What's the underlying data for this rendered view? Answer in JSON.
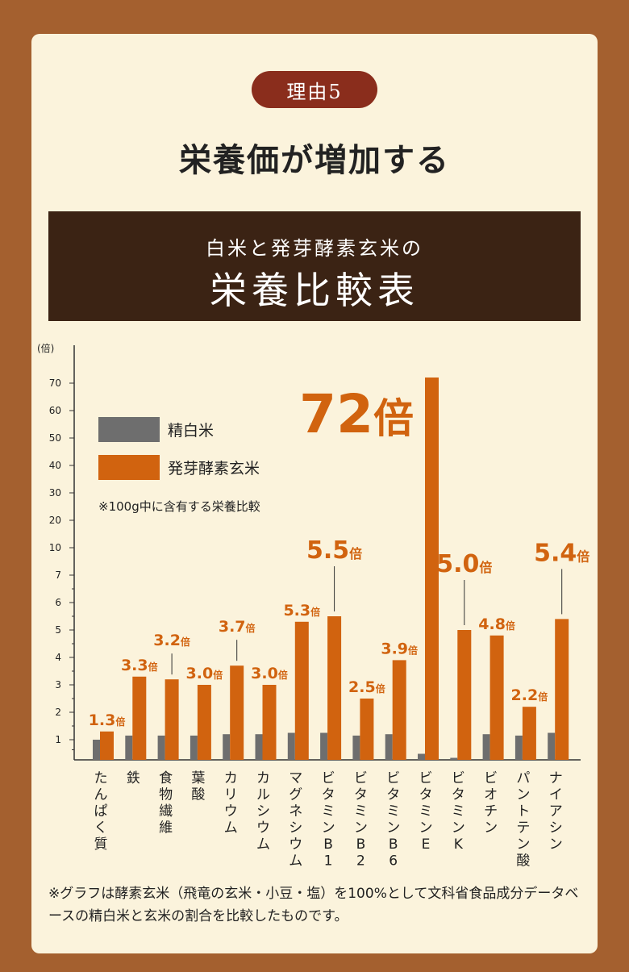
{
  "reason_badge": "理由5",
  "heading": "栄養価が増加する",
  "banner": {
    "line1": "白米と発芽酵素玄米の",
    "line2": "栄養比較表"
  },
  "chart_data": {
    "type": "bar",
    "yunit": "(倍)",
    "yticks": [
      "1",
      "2",
      "3",
      "4",
      "5",
      "6",
      "7",
      "10",
      "20",
      "30",
      "40",
      "50",
      "60",
      "70"
    ],
    "categories": [
      "たんぱく質",
      "鉄",
      "食物繊維",
      "葉酸",
      "カリウム",
      "カルシウム",
      "マグネシウム",
      "ビタミンB1",
      "ビタミンB2",
      "ビタミンB6",
      "ビタミンE",
      "ビタミンK",
      "ビオチン",
      "パントテン酸",
      "ナイアシン"
    ],
    "series": [
      {
        "name": "精白米",
        "color": "#6e6e6e",
        "values": [
          1.0,
          1.15,
          1.15,
          1.15,
          1.2,
          1.2,
          1.25,
          1.25,
          1.15,
          1.2,
          0.3,
          0.1,
          1.2,
          1.15,
          1.25
        ]
      },
      {
        "name": "発芽酵素玄米",
        "color": "#d1630f",
        "values": [
          1.3,
          3.3,
          3.2,
          3.0,
          3.7,
          3.0,
          5.3,
          5.5,
          2.5,
          3.9,
          72,
          5.0,
          4.8,
          2.2,
          5.4
        ]
      }
    ],
    "value_labels": [
      {
        "num": "1.3",
        "unit": "倍"
      },
      {
        "num": "3.3",
        "unit": "倍"
      },
      {
        "num": "3.2",
        "unit": "倍"
      },
      {
        "num": "3.0",
        "unit": "倍"
      },
      {
        "num": "3.7",
        "unit": "倍"
      },
      {
        "num": "3.0",
        "unit": "倍"
      },
      {
        "num": "5.3",
        "unit": "倍"
      },
      {
        "num": "5.5",
        "unit": "倍"
      },
      {
        "num": "2.5",
        "unit": "倍"
      },
      {
        "num": "3.9",
        "unit": "倍"
      },
      {
        "num": "72",
        "unit": "倍"
      },
      {
        "num": "5.0",
        "unit": "倍"
      },
      {
        "num": "4.8",
        "unit": "倍"
      },
      {
        "num": "2.2",
        "unit": "倍"
      },
      {
        "num": "5.4",
        "unit": "倍"
      }
    ],
    "legend_note": "※100g中に含有する栄養比較",
    "legend_placement": "top-left"
  },
  "footnote": "※グラフは酵素玄米（飛竜の玄米・小豆・塩）を100%として文科省食品成分データベースの精白米と玄米の割合を比較したものです。"
}
